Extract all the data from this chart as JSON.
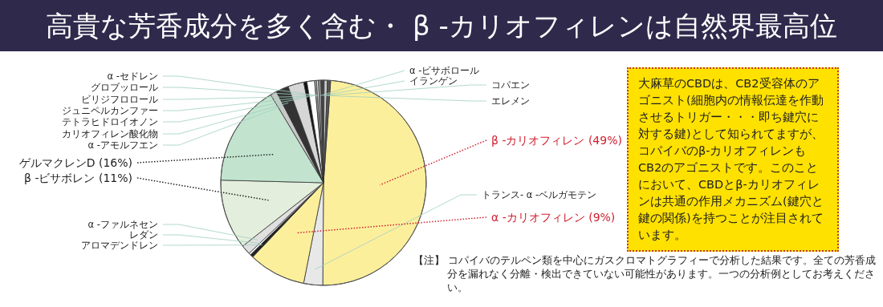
{
  "chart_data": {
    "type": "pie",
    "title": "高貴な芳香成分を多く含む・ β -カリオフィレンは自然界最高位",
    "categories": [
      "β -カリオフィレン",
      "トランス- α -ベルガモテン",
      "α -カリオフィレン",
      "アロマデンドレン",
      "レダン",
      "α -ファルネセン",
      "β -ビサボレン",
      "ゲルマクレンD",
      "α -アモルフエン",
      "カリオフィレン酸化物",
      "テトラヒドロイオノン",
      "ジュニペルカンファー",
      "ビリジフロロール",
      "グロブッロール",
      "α -セドレン",
      "α -ビサボロール",
      "イランゲン",
      "コパエン",
      "エレメン"
    ],
    "values": [
      49,
      3,
      9,
      0.5,
      0.3,
      1.5,
      11,
      16,
      1.0,
      2.0,
      2.5,
      0.5,
      1.2,
      0.3,
      0.3,
      0.4,
      0.5,
      0.5,
      0.5
    ],
    "value_labels": [
      "(49%)",
      null,
      "(9%)",
      null,
      null,
      null,
      "(11%)",
      "(16%)",
      null,
      null,
      null,
      null,
      null,
      null,
      null,
      null,
      null,
      null,
      null
    ],
    "colors": [
      "#fcef9c",
      "#e8e8e8",
      "#fcef9c",
      "#222222",
      "#ffffff",
      "#e0e0e0",
      "#e3efdc",
      "#c2e4cf",
      "#c8c8c8",
      "#333333",
      "#d6d6d6",
      "#111111",
      "#ffffff",
      "#aaaaaa",
      "#eeeeee",
      "#999999",
      "#444444",
      "#cccccc",
      "#555555"
    ],
    "annotations": [
      "大麻草のCBDは、CB2受容体のアゴニスト(細胞内の情報伝達を作動させるトリガー・・・即ち鍵穴に対する鍵)として知られてますが、コパイバのβ-カリオフィレンもCB2のアゴニストです。このことにおいて、CBDとβ-カリオフィレンは共通の作用メカニズム(鍵穴と鍵の関係)を持つことが注目されています。",
      "【注】 コパイバのテルペン類を中心にガスクロマトグラフィーで分析した結果です。全ての芳香成分を漏れなく分離・検出できていない可能性があります。一つの分析例としてお考えください。"
    ]
  }
}
